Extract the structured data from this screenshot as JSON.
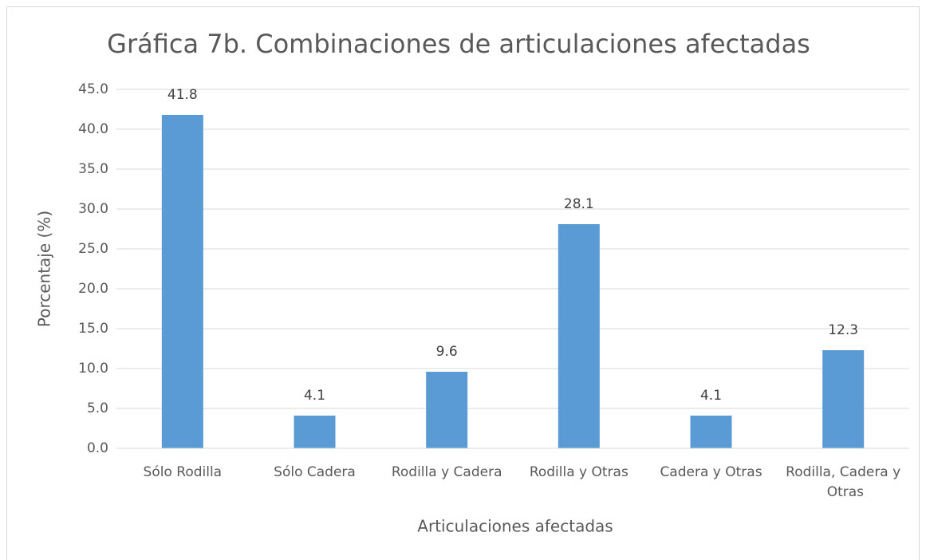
{
  "chart_data": {
    "type": "bar",
    "title": "Gráfica 7b. Combinaciones de articulaciones afectadas",
    "x_label": "Articulaciones afectadas",
    "y_label": "Porcentaje (%)",
    "categories": [
      "Sólo Rodilla",
      "Sólo Cadera",
      "Rodilla y Cadera",
      "Rodilla y Otras",
      "Cadera y Otras",
      "Rodilla, Cadera y Otras"
    ],
    "values": [
      41.8,
      4.1,
      9.6,
      28.1,
      4.1,
      12.3
    ],
    "color": "#5b9bd5",
    "ylim": [
      0,
      45
    ],
    "yticks": [
      {
        "value": 0,
        "label": "0.0"
      },
      {
        "value": 5,
        "label": "5.0"
      },
      {
        "value": 10,
        "label": "10.0"
      },
      {
        "value": 15,
        "label": "15.0"
      },
      {
        "value": 20,
        "label": "20.0"
      },
      {
        "value": 25,
        "label": "25.0"
      },
      {
        "value": 30,
        "label": "30.0"
      },
      {
        "value": 35,
        "label": "35.0"
      },
      {
        "value": 40,
        "label": "40.0"
      },
      {
        "value": 45,
        "label": "45.0"
      }
    ],
    "grid": true
  }
}
